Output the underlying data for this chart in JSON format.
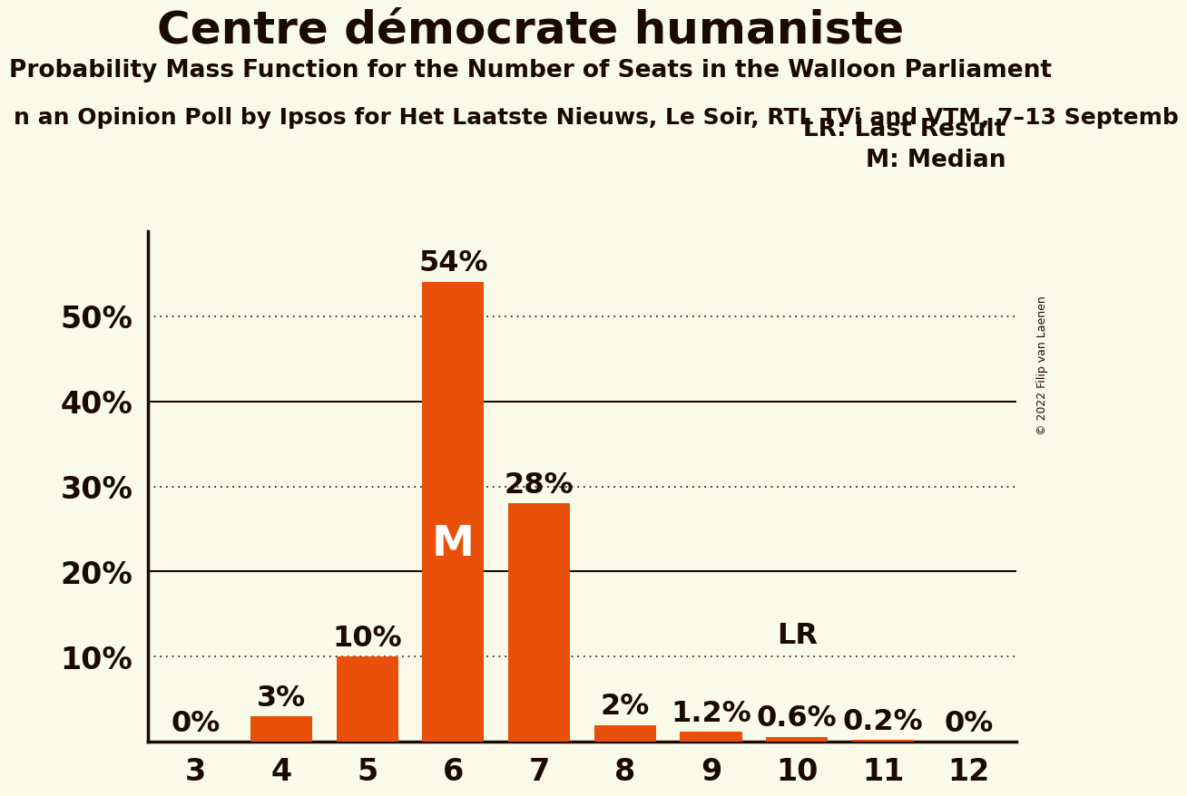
{
  "title": "Centre démocrate humaniste",
  "subtitle": "Probability Mass Function for the Number of Seats in the Walloon Parliament",
  "subsubtitle": "n an Opinion Poll by Ipsos for Het Laatste Nieuws, Le Soir, RTL TVi and VTM, 7–13 Septemb",
  "copyright": "© 2022 Filip van Laenen",
  "categories": [
    3,
    4,
    5,
    6,
    7,
    8,
    9,
    10,
    11,
    12
  ],
  "values": [
    0.0,
    3.0,
    10.0,
    54.0,
    28.0,
    2.0,
    1.2,
    0.6,
    0.2,
    0.0
  ],
  "bar_color": "#E8500A",
  "background_color": "#FAFAE8",
  "axis_color": "#1A0A00",
  "text_color": "#1A0A00",
  "median_seat": 6,
  "lr_seat": 10,
  "ylim": [
    0,
    60
  ],
  "yticks": [
    0,
    10,
    20,
    30,
    40,
    50
  ],
  "solid_gridlines": [
    20,
    40
  ],
  "dotted_gridlines": [
    10,
    30,
    50
  ],
  "title_fontsize": 36,
  "subtitle_fontsize": 19,
  "subsubtitle_fontsize": 18,
  "legend_fontsize": 19,
  "tick_fontsize": 24,
  "annotation_fontsize": 23,
  "m_fontsize": 34,
  "bar_width": 0.72
}
